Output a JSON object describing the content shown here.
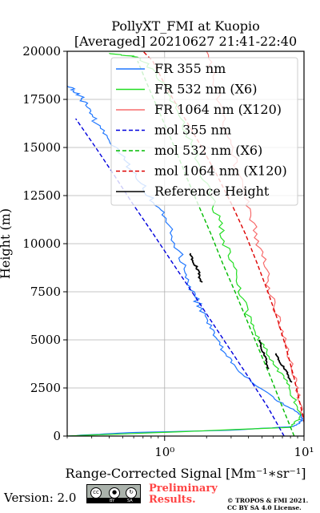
{
  "chart_data": {
    "type": "line",
    "title_line1": "PollyXT_FMI at Kuopio",
    "title_line2": "[Averaged] 20210627 21:41-22:40",
    "ylabel": "Height (m)",
    "xlabel": "Range-Corrected Signal [Mm⁻¹∗sr⁻¹]",
    "xscale": "log",
    "xlim": [
      0.2,
      10
    ],
    "ylim": [
      0,
      20000
    ],
    "x_tick_labels": [
      "10⁰",
      "10¹"
    ],
    "y_ticks": [
      0,
      2500,
      5000,
      7500,
      10000,
      12500,
      15000,
      17500,
      20000
    ],
    "grid": true,
    "legend_position": "top-right",
    "series": [
      {
        "name": "FR 355 nm",
        "color": "#1f77ff",
        "style": "solid",
        "x": [
          0.2,
          0.55,
          3.0,
          8.5,
          9.8,
          9.2,
          7.0,
          4.5,
          3.2,
          2.6,
          2.2,
          1.85,
          1.58,
          1.45,
          1.2,
          0.98,
          0.78,
          0.62,
          0.5,
          0.38,
          0.31,
          0.27,
          0.24,
          0.2
        ],
        "y": [
          0,
          180,
          300,
          500,
          800,
          1200,
          1700,
          2600,
          3600,
          4500,
          5500,
          6500,
          7500,
          8500,
          10000,
          11500,
          12500,
          13500,
          14500,
          15500,
          16500,
          17300,
          17800,
          18200
        ]
      },
      {
        "name": "FR 532 nm (X6)",
        "color": "#22dd22",
        "style": "solid",
        "x": [
          0.2,
          8.0,
          9.6,
          8.4,
          7.2,
          5.8,
          4.8,
          4.1,
          3.5,
          3.0,
          2.6,
          2.25,
          1.9,
          1.6,
          1.32,
          1.05,
          0.84,
          0.65,
          0.4
        ],
        "y": [
          0,
          450,
          1000,
          2000,
          3000,
          4000,
          5000,
          6000,
          7500,
          9000,
          10500,
          12000,
          13500,
          15000,
          16500,
          18000,
          19000,
          19700,
          19900
        ]
      },
      {
        "name": "FR 1064 nm (X120)",
        "color": "#f76c6c",
        "style": "solid",
        "x": [
          9.8,
          9.2,
          8.6,
          7.6,
          6.6,
          5.7,
          5.2,
          4.5,
          3.9,
          3.4,
          3.0,
          2.6,
          2.3,
          2.0
        ],
        "y": [
          800,
          2000,
          3000,
          4500,
          6000,
          7500,
          9000,
          10500,
          12000,
          13500,
          15000,
          16500,
          18500,
          20000
        ]
      },
      {
        "name": "mol 355 nm",
        "color": "#0000dd",
        "style": "dashed",
        "x": [
          7.2,
          5.5,
          4.05,
          2.95,
          2.15,
          1.57,
          1.14,
          0.83,
          0.6,
          0.44,
          0.32,
          0.23
        ],
        "y": [
          0,
          1500,
          3000,
          4500,
          6000,
          7500,
          9000,
          10500,
          12000,
          13500,
          15000,
          16500
        ]
      },
      {
        "name": "mol 532 nm (X6)",
        "color": "#00bb00",
        "style": "dashed",
        "x": [
          8.5,
          7.0,
          5.8,
          4.75,
          3.9,
          3.2,
          2.6,
          2.15,
          1.75,
          1.43,
          1.18,
          0.96,
          0.78,
          0.64
        ],
        "y": [
          0,
          1500,
          3000,
          4500,
          6000,
          7500,
          9000,
          10500,
          12000,
          13500,
          15000,
          16500,
          18000,
          19500
        ]
      },
      {
        "name": "mol 1064 nm (X120)",
        "color": "#dd0000",
        "style": "dashed",
        "x": [
          10.5,
          9.5,
          8.5,
          7.5,
          6.5,
          5.5,
          4.6,
          3.8,
          3.05,
          2.4,
          1.85,
          1.4,
          1.05,
          0.82,
          0.7
        ],
        "y": [
          0,
          1500,
          3000,
          4500,
          6000,
          7500,
          9000,
          10500,
          12000,
          13500,
          15000,
          16500,
          18000,
          19500,
          20000
        ]
      },
      {
        "name": "Reference Height",
        "color": "#000000",
        "style": "solid",
        "segments": [
          {
            "x": [
              1.5,
              1.63,
              1.74,
              1.87
            ],
            "y": [
              9500,
              9000,
              8500,
              8000
            ]
          },
          {
            "x": [
              4.75,
              5.0,
              5.3,
              5.6
            ],
            "y": [
              5000,
              4500,
              4000,
              3500
            ]
          },
          {
            "x": [
              6.2,
              6.8,
              7.5,
              8.2
            ],
            "y": [
              4300,
              3800,
              3300,
              2800
            ]
          }
        ]
      }
    ]
  },
  "footer": {
    "version": "Version: 2.0",
    "badge": {
      "cc": "cc",
      "by": "BY",
      "sa": "SA"
    },
    "preliminary_line1": "Preliminary",
    "preliminary_line2": "Results.",
    "credit_line1": "© TROPOS & FMI 2021.",
    "credit_line2": "CC BY SA 4.0 License."
  }
}
